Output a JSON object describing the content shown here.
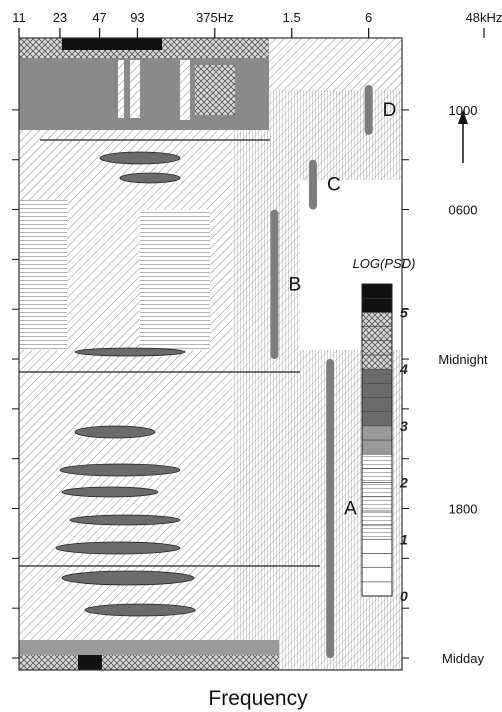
{
  "chart_data": {
    "type": "heatmap",
    "title": "",
    "xlabel": "Frequency",
    "ylabel": "",
    "x_scale": "log",
    "x_tick_labels": [
      "11",
      "23",
      "47",
      "93",
      "375Hz",
      "1.5",
      "6",
      "48kHz"
    ],
    "time_labels": [
      "1000",
      "0600",
      "Midnight",
      "1800",
      "Midday"
    ],
    "time_direction_arrow": "up",
    "legend": {
      "title": "LOG(PSD)",
      "placement": "right",
      "ticks": [
        "5",
        "4",
        "3",
        "2",
        "1",
        "0"
      ],
      "range": [
        0,
        5.5
      ]
    },
    "bands": [
      {
        "name": "A",
        "freq_hz": 3000,
        "from": "Midday",
        "to": "Midnight"
      },
      {
        "name": "B",
        "freq_hz": 1100,
        "from": "Midnight",
        "to": "0600"
      },
      {
        "name": "C",
        "freq_hz": 2200,
        "from": "0600",
        "to": "0800"
      },
      {
        "name": "D",
        "freq_hz": 6000,
        "from": "0900",
        "to": "1100"
      }
    ],
    "grid": false
  },
  "colors": {
    "high": "#111111",
    "mid_dark": "#6b6b6b",
    "mid": "#9a9a9a",
    "low": "#ffffff",
    "band": "#7d7d7d"
  }
}
